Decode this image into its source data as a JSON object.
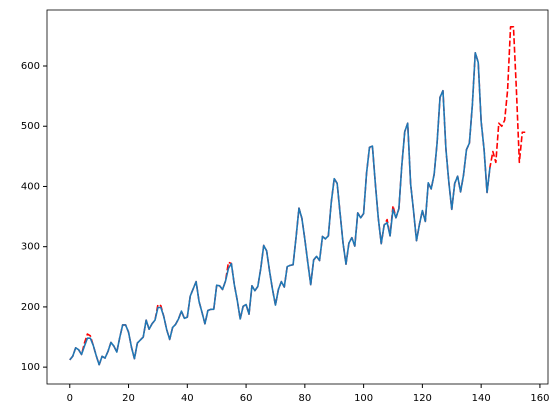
{
  "chart_data": {
    "type": "line",
    "series": [
      {
        "color": "#ff0000",
        "linestyle": "dashed",
        "values": [
          112,
          118,
          132,
          129,
          121,
          140,
          155,
          152,
          136,
          119,
          104,
          118,
          115,
          126,
          141,
          135,
          125,
          149,
          170,
          170,
          158,
          133,
          114,
          140,
          145,
          150,
          178,
          163,
          172,
          178,
          204,
          202,
          184,
          162,
          146,
          166,
          171,
          180,
          193,
          181,
          183,
          218,
          230,
          242,
          209,
          191,
          172,
          194,
          196,
          196,
          236,
          235,
          229,
          243,
          274,
          272,
          237,
          211,
          180,
          201,
          204,
          188,
          235,
          227,
          234,
          264,
          302,
          293,
          259,
          229,
          203,
          229,
          242,
          233,
          267,
          269,
          270,
          315,
          364,
          347,
          312,
          274,
          237,
          278,
          284,
          277,
          317,
          313,
          318,
          374,
          413,
          405,
          355,
          306,
          271,
          306,
          315,
          301,
          356,
          348,
          355,
          422,
          465,
          467,
          404,
          347,
          305,
          336,
          345,
          318,
          368,
          348,
          363,
          435,
          491,
          505,
          404,
          359,
          310,
          337,
          360,
          342,
          406,
          396,
          420,
          472,
          548,
          559,
          463,
          407,
          362,
          405,
          417,
          391,
          419,
          461,
          472,
          535,
          622,
          606,
          508,
          461,
          390,
          432,
          458,
          440,
          505,
          500,
          510,
          560,
          665,
          665,
          560,
          440,
          490,
          490
        ]
      },
      {
        "color": "#1f77b4",
        "linestyle": "solid",
        "values": [
          112,
          118,
          132,
          129,
          121,
          135,
          148,
          148,
          136,
          119,
          104,
          118,
          115,
          126,
          141,
          135,
          125,
          149,
          170,
          170,
          158,
          133,
          114,
          140,
          145,
          150,
          178,
          163,
          172,
          178,
          199,
          199,
          184,
          162,
          146,
          166,
          171,
          180,
          193,
          181,
          183,
          218,
          230,
          242,
          209,
          191,
          172,
          194,
          196,
          196,
          236,
          235,
          229,
          243,
          264,
          272,
          237,
          211,
          180,
          201,
          204,
          188,
          235,
          227,
          234,
          264,
          302,
          293,
          259,
          229,
          203,
          229,
          242,
          233,
          267,
          269,
          270,
          315,
          364,
          347,
          312,
          274,
          237,
          278,
          284,
          277,
          317,
          313,
          318,
          374,
          413,
          405,
          355,
          306,
          271,
          306,
          315,
          301,
          356,
          348,
          355,
          422,
          465,
          467,
          404,
          347,
          305,
          336,
          340,
          318,
          362,
          348,
          363,
          435,
          491,
          505,
          404,
          359,
          310,
          337,
          360,
          342,
          406,
          396,
          420,
          472,
          548,
          559,
          463,
          407,
          362,
          405,
          417,
          391,
          419,
          461,
          472,
          535,
          622,
          606,
          508,
          461,
          390,
          432
        ]
      }
    ],
    "xlim": [
      -7.75,
      162.75
    ],
    "xticks": [
      0,
      20,
      40,
      60,
      80,
      100,
      120,
      140,
      160
    ],
    "ylim": [
      72,
      693
    ],
    "yticks": [
      100,
      200,
      300,
      400,
      500,
      600
    ],
    "grid": false
  }
}
